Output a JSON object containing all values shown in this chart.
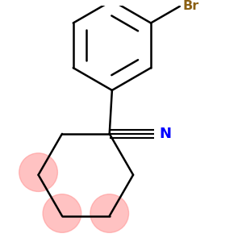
{
  "background_color": "#ffffff",
  "bond_color": "#000000",
  "N_color": "#0000ff",
  "Br_color": "#8B6014",
  "highlight_color": "#FF9090",
  "highlight_alpha": 0.55,
  "figsize": [
    3.0,
    3.0
  ],
  "dpi": 100,
  "bond_lw": 1.8
}
